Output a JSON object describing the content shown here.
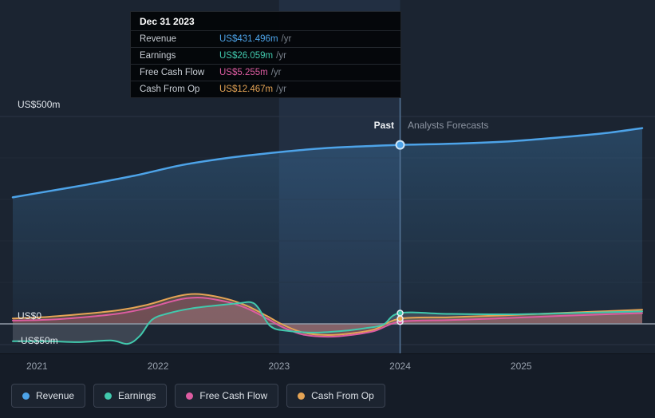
{
  "tooltip": {
    "date": "Dec 31 2023",
    "rows": [
      {
        "label": "Revenue",
        "value": "US$431.496m",
        "suffix": "/yr",
        "color": "#4da3e8"
      },
      {
        "label": "Earnings",
        "value": "US$26.059m",
        "suffix": "/yr",
        "color": "#41c9ad"
      },
      {
        "label": "Free Cash Flow",
        "value": "US$5.255m",
        "suffix": "/yr",
        "color": "#dd5ca1"
      },
      {
        "label": "Cash From Op",
        "value": "US$12.467m",
        "suffix": "/yr",
        "color": "#e5a455"
      }
    ]
  },
  "axis": {
    "y_labels": [
      {
        "value": 500,
        "label": "US$500m"
      },
      {
        "value": 0,
        "label": "US$0"
      },
      {
        "value": -50,
        "label": "-US$50m"
      }
    ],
    "x_ticks": [
      {
        "year": 2021,
        "label": "2021"
      },
      {
        "year": 2022,
        "label": "2022"
      },
      {
        "year": 2023,
        "label": "2023"
      },
      {
        "year": 2024,
        "label": "2024"
      },
      {
        "year": 2025,
        "label": "2025"
      }
    ]
  },
  "divider": {
    "past_label": "Past",
    "forecast_label": "Analysts Forecasts",
    "boundary_date": "Dec 31 2023"
  },
  "legend": [
    {
      "label": "Revenue",
      "color": "#4da3e8"
    },
    {
      "label": "Earnings",
      "color": "#41c9ad"
    },
    {
      "label": "Free Cash Flow",
      "color": "#dd5ca1"
    },
    {
      "label": "Cash From Op",
      "color": "#e5a455"
    }
  ],
  "chart_data": {
    "type": "line",
    "units": "US$ millions",
    "x_range": [
      2020.8,
      2026.0
    ],
    "ylim": [
      -62,
      540
    ],
    "x_ticks": [
      2021,
      2022,
      2023,
      2024,
      2025
    ],
    "y_gridlines": [
      500,
      0,
      -50
    ],
    "minor_gridlines": [
      100,
      200,
      300,
      400
    ],
    "past_until": 2024,
    "highlight_band": [
      2023,
      2024
    ],
    "series": [
      {
        "name": "Revenue",
        "color": "#4da3e8",
        "fill": "rgba(77,163,232,0.14)",
        "width": 2.5,
        "x": [
          2020.8,
          2021.0,
          2021.4,
          2021.8,
          2022.2,
          2022.6,
          2023.0,
          2023.4,
          2023.7,
          2024.0,
          2024.4,
          2024.9,
          2025.3,
          2025.7,
          2026.0
        ],
        "y": [
          305,
          315,
          335,
          357,
          383,
          401,
          414,
          424,
          428,
          431.5,
          434,
          440,
          449,
          460,
          472
        ]
      },
      {
        "name": "Earnings",
        "color": "#41c9ad",
        "fill": "rgba(158,167,178,0.26)",
        "width": 2,
        "x": [
          2020.8,
          2021.1,
          2021.35,
          2021.61,
          2021.75,
          2021.85,
          2021.95,
          2022.08,
          2022.27,
          2022.47,
          2022.67,
          2022.77,
          2022.83,
          2022.93,
          2023.07,
          2023.3,
          2023.53,
          2023.72,
          2023.86,
          2024.0,
          2024.4,
          2024.9,
          2025.4,
          2026.0
        ],
        "y": [
          -42,
          -42,
          -44,
          -40,
          -48,
          -29,
          10,
          25,
          37,
          44,
          50,
          52,
          38,
          -6,
          -17,
          -21,
          -17,
          -10,
          -2,
          26.059,
          24,
          23,
          26,
          30
        ]
      },
      {
        "name": "Free Cash Flow",
        "color": "#dd5ca1",
        "fill": "rgba(221,92,161,0.20)",
        "width": 2,
        "x": [
          2020.8,
          2021.09,
          2021.42,
          2021.68,
          2021.91,
          2022.11,
          2022.24,
          2022.37,
          2022.57,
          2022.73,
          2022.9,
          2023.03,
          2023.2,
          2023.4,
          2023.59,
          2023.79,
          2024.0,
          2024.4,
          2024.8,
          2025.3,
          2026.0
        ],
        "y": [
          8,
          10,
          17,
          25,
          38,
          54,
          62,
          63,
          53,
          38,
          13,
          -8,
          -26,
          -31,
          -27,
          -17,
          5.255,
          9,
          13,
          19,
          26
        ]
      },
      {
        "name": "Cash From Op",
        "color": "#e5a455",
        "fill": "rgba(229,164,85,0.28)",
        "width": 2,
        "x": [
          2020.8,
          2021.09,
          2021.42,
          2021.68,
          2021.91,
          2022.11,
          2022.24,
          2022.37,
          2022.57,
          2022.73,
          2022.9,
          2023.03,
          2023.2,
          2023.4,
          2023.59,
          2023.79,
          2024.0,
          2024.4,
          2024.8,
          2025.3,
          2026.0
        ],
        "y": [
          13,
          17,
          25,
          33,
          46,
          63,
          71,
          71,
          60,
          44,
          19,
          -2,
          -21,
          -27,
          -23,
          -13,
          12.467,
          16,
          20,
          26,
          34
        ]
      }
    ],
    "markers": {
      "x": 2024,
      "points": [
        {
          "series": "Revenue",
          "value": 431.496
        },
        {
          "series": "Earnings",
          "value": 26.059
        },
        {
          "series": "Free Cash Flow",
          "value": 5.255
        },
        {
          "series": "Cash From Op",
          "value": 12.467
        }
      ]
    }
  }
}
